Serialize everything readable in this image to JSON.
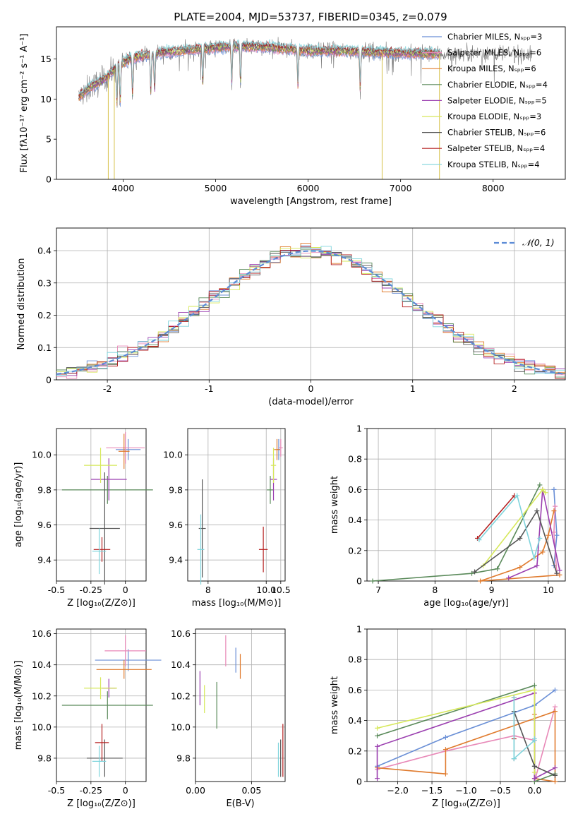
{
  "figure": {
    "title": "PLATE=2004, MJD=53737, FIBERID=0345, z=0.079"
  },
  "chart_data": [
    {
      "id": "spectrum",
      "type": "line",
      "title": "PLATE=2004, MJD=53737, FIBERID=0345, z=0.079",
      "xlabel": "wavelength [Angstrom, rest frame]",
      "ylabel": "Flux [fλ10⁻¹⁷ erg cm⁻² s⁻¹ A⁻¹]",
      "xlim": [
        3280,
        8780
      ],
      "ylim": [
        0,
        19
      ],
      "xticks": [
        4000,
        5000,
        6000,
        7000,
        8000
      ],
      "yticks": [
        0,
        5,
        10,
        15
      ],
      "grid": false,
      "legend_position": "top-right",
      "series": [
        {
          "name": "Chabrier MILES, Nₛₚₚ=3",
          "color": "#6a8fd6"
        },
        {
          "name": "Salpeter MILES, Nₛₚₚ=6",
          "color": "#e889b8"
        },
        {
          "name": "Kroupa MILES, Nₛₚₚ=6",
          "color": "#e07b2e"
        },
        {
          "name": "Chabrier ELODIE, Nₛₚₚ=4",
          "color": "#5a8a5a"
        },
        {
          "name": "Salpeter ELODIE, Nₛₚₚ=5",
          "color": "#9b3fb0"
        },
        {
          "name": "Kroupa ELODIE, Nₛₚₚ=3",
          "color": "#d6e85a"
        },
        {
          "name": "Chabrier STELIB, Nₛₚₚ=6",
          "color": "#555555"
        },
        {
          "name": "Salpeter STELIB, Nₛₚₚ=4",
          "color": "#b52020"
        },
        {
          "name": "Kroupa STELIB, Nₛₚₚ=4",
          "color": "#7fd4dc"
        }
      ],
      "continuum_points": [
        [
          3500,
          10
        ],
        [
          3650,
          11.5
        ],
        [
          3800,
          12.5
        ],
        [
          3950,
          14.2
        ],
        [
          4100,
          15.2
        ],
        [
          4400,
          15.8
        ],
        [
          4800,
          16.2
        ],
        [
          5200,
          16.6
        ],
        [
          5600,
          16.4
        ],
        [
          6000,
          16.0
        ],
        [
          6400,
          16.0
        ],
        [
          6800,
          15.8
        ],
        [
          7200,
          15.7
        ],
        [
          7500,
          15.6
        ],
        [
          8000,
          15.8
        ],
        [
          8400,
          15.5
        ]
      ],
      "spectrum_range": [
        3520,
        8420
      ],
      "model_range": [
        3520,
        7420
      ],
      "absorption_lines": [
        3934,
        3969,
        4102,
        4300,
        4341,
        4861,
        5175,
        5270,
        5890,
        6563
      ],
      "vertical_drops": [
        [
          3840,
          0
        ],
        [
          3905,
          0
        ],
        [
          6800,
          0
        ],
        [
          7420,
          0
        ]
      ]
    },
    {
      "id": "residuals",
      "type": "step",
      "xlabel": "(data-model)/error",
      "ylabel": "Normed distribution",
      "xlim": [
        -2.5,
        2.5
      ],
      "ylim": [
        0,
        0.47
      ],
      "xticks": [
        -2,
        -1,
        0,
        1,
        2
      ],
      "yticks": [
        0.0,
        0.1,
        0.2,
        0.3,
        0.4
      ],
      "grid": true,
      "legend_position": "top-right",
      "reference_curve": {
        "name": "𝒩(0, 1)",
        "color": "#5b8bd6",
        "dashed": true
      },
      "bin_width": 0.1
    },
    {
      "id": "age-vs-Z",
      "type": "errorbar",
      "xlabel": "Z [log₁₀(Z/Z⊙)]",
      "ylabel": "age  [log₁₀(age/yr)]",
      "xlim": [
        -0.5,
        0.15
      ],
      "ylim": [
        9.28,
        10.15
      ],
      "xticks": [
        -0.5,
        -0.25,
        0.0
      ],
      "ytick_labels": [
        "9.4",
        "9.6",
        "9.8",
        "10.0"
      ],
      "yticks": [
        9.4,
        9.6,
        9.8,
        10.0
      ],
      "grid": true,
      "points": [
        {
          "x": 0.02,
          "y": 10.03,
          "xerr": 0.09,
          "yerr": 0.06,
          "color": "#6a8fd6"
        },
        {
          "x": 0.0,
          "y": 10.04,
          "xerr": 0.14,
          "yerr": 0.09,
          "color": "#e889b8"
        },
        {
          "x": -0.01,
          "y": 10.02,
          "xerr": 0.04,
          "yerr": 0.1,
          "color": "#e07b2e"
        },
        {
          "x": -0.13,
          "y": 9.8,
          "xerr": 0.33,
          "yerr": 0.08,
          "color": "#5a8a5a"
        },
        {
          "x": -0.12,
          "y": 9.86,
          "xerr": 0.13,
          "yerr": 0.12,
          "color": "#9b3fb0"
        },
        {
          "x": -0.18,
          "y": 9.94,
          "xerr": 0.12,
          "yerr": 0.1,
          "color": "#d6e85a"
        },
        {
          "x": -0.15,
          "y": 9.58,
          "xerr": 0.11,
          "yerr": 0.32,
          "color": "#555555"
        },
        {
          "x": -0.17,
          "y": 9.46,
          "xerr": 0.06,
          "yerr": 0.07,
          "color": "#b52020"
        },
        {
          "x": -0.19,
          "y": 9.45,
          "xerr": 0.05,
          "yerr": 0.13,
          "color": "#7fd4dc"
        }
      ]
    },
    {
      "id": "age-vs-mass",
      "type": "errorbar",
      "xlabel": "mass [log₁₀(M/M⊙)]",
      "xlim": [
        7.3,
        10.65
      ],
      "ylim": [
        9.28,
        10.15
      ],
      "xticks": [
        8,
        10,
        10.5
      ],
      "xtick_labels": [
        "8",
        "10.0",
        "10.5"
      ],
      "yticks": [
        9.4,
        9.6,
        9.8,
        10.0
      ],
      "ytick_labels": [
        "9.4",
        "9.6",
        "9.8",
        "10.0"
      ],
      "grid": true,
      "points": [
        {
          "x": 10.43,
          "y": 10.03,
          "xerr": 0.05,
          "yerr": 0.06,
          "color": "#6a8fd6"
        },
        {
          "x": 10.5,
          "y": 10.04,
          "xerr": 0.07,
          "yerr": 0.05,
          "color": "#e889b8"
        },
        {
          "x": 10.37,
          "y": 10.03,
          "xerr": 0.1,
          "yerr": 0.06,
          "color": "#e07b2e"
        },
        {
          "x": 10.14,
          "y": 9.8,
          "xerr": 0.12,
          "yerr": 0.08,
          "color": "#5a8a5a"
        },
        {
          "x": 10.25,
          "y": 9.86,
          "xerr": 0.12,
          "yerr": 0.12,
          "color": "#9b3fb0"
        },
        {
          "x": 10.25,
          "y": 9.94,
          "xerr": 0.09,
          "yerr": 0.1,
          "color": "#d6e85a"
        },
        {
          "x": 7.8,
          "y": 9.58,
          "xerr": 0.12,
          "yerr": 0.28,
          "color": "#555555"
        },
        {
          "x": 9.9,
          "y": 9.46,
          "xerr": 0.15,
          "yerr": 0.13,
          "color": "#b52020"
        },
        {
          "x": 7.75,
          "y": 9.46,
          "xerr": 0.12,
          "yerr": 0.2,
          "color": "#7fd4dc"
        }
      ]
    },
    {
      "id": "mass-weight-vs-age",
      "type": "line",
      "xlabel": "age  [log₁₀(age/yr)]",
      "ylabel": "mass weight",
      "xlim": [
        6.8,
        10.3
      ],
      "ylim": [
        0,
        1.0
      ],
      "xticks": [
        7,
        8,
        9,
        10
      ],
      "yticks": [
        0.0,
        0.2,
        0.4,
        0.6,
        0.8,
        1.0
      ],
      "grid": true,
      "series": [
        {
          "color": "#6a8fd6",
          "x": [
            10.1,
            10.15,
            10.1
          ],
          "y": [
            0.6,
            0.3,
            0.1
          ]
        },
        {
          "color": "#e889b8",
          "x": [
            10.12,
            10.1,
            10.15
          ],
          "y": [
            0.49,
            0.32,
            0.05
          ]
        },
        {
          "color": "#e07b2e",
          "x": [
            10.1,
            10.0,
            9.9,
            9.5,
            8.8,
            10.2
          ],
          "y": [
            0.46,
            0.3,
            0.19,
            0.09,
            0.0,
            0.04
          ]
        },
        {
          "color": "#5a8a5a",
          "x": [
            6.9,
            8.65,
            9.1,
            9.85
          ],
          "y": [
            0.0,
            0.05,
            0.08,
            0.63
          ]
        },
        {
          "color": "#9b3fb0",
          "x": [
            9.3,
            9.8,
            9.9,
            10.2
          ],
          "y": [
            0.02,
            0.1,
            0.6,
            0.07
          ]
        },
        {
          "color": "#d6e85a",
          "x": [
            8.85,
            9.9,
            9.95
          ],
          "y": [
            0.1,
            0.6,
            0.58
          ]
        },
        {
          "color": "#555555",
          "x": [
            8.7,
            9.5,
            9.8,
            10.15
          ],
          "y": [
            0.06,
            0.28,
            0.46,
            0.05
          ]
        },
        {
          "color": "#b52020",
          "x": [
            8.75,
            9.4
          ],
          "y": [
            0.28,
            0.56
          ]
        },
        {
          "color": "#7fd4dc",
          "x": [
            8.78,
            9.45,
            9.75,
            9.85
          ],
          "y": [
            0.27,
            0.56,
            0.15,
            0.28
          ]
        }
      ]
    },
    {
      "id": "mass-vs-Z",
      "type": "errorbar",
      "xlabel": "Z [log₁₀(Z/Z⊙)]",
      "ylabel": "mass [log₁₀(M/M⊙)]",
      "xlim": [
        -0.5,
        0.15
      ],
      "ylim": [
        9.65,
        10.63
      ],
      "xticks": [
        -0.5,
        -0.25,
        0.0
      ],
      "yticks": [
        9.8,
        10.0,
        10.2,
        10.4,
        10.6
      ],
      "ytick_labels": [
        "9.8",
        "10.0",
        "10.2",
        "10.4",
        "10.6"
      ],
      "grid": true,
      "points": [
        {
          "x": 0.02,
          "y": 10.43,
          "xerr": 0.24,
          "yerr": 0.07,
          "color": "#6a8fd6"
        },
        {
          "x": 0.0,
          "y": 10.49,
          "xerr": 0.15,
          "yerr": 0.1,
          "color": "#e889b8"
        },
        {
          "x": -0.01,
          "y": 10.37,
          "xerr": 0.2,
          "yerr": 0.06,
          "color": "#e07b2e"
        },
        {
          "x": -0.13,
          "y": 10.14,
          "xerr": 0.33,
          "yerr": 0.09,
          "color": "#5a8a5a"
        },
        {
          "x": -0.12,
          "y": 10.25,
          "xerr": 0.05,
          "yerr": 0.06,
          "color": "#9b3fb0"
        },
        {
          "x": -0.18,
          "y": 10.25,
          "xerr": 0.12,
          "yerr": 0.07,
          "color": "#d6e85a"
        },
        {
          "x": -0.15,
          "y": 9.8,
          "xerr": 0.13,
          "yerr": 0.12,
          "color": "#555555"
        },
        {
          "x": -0.17,
          "y": 9.9,
          "xerr": 0.05,
          "yerr": 0.12,
          "color": "#b52020"
        },
        {
          "x": -0.19,
          "y": 9.78,
          "xerr": 0.05,
          "yerr": 0.1,
          "color": "#7fd4dc"
        }
      ]
    },
    {
      "id": "mass-vs-EBV",
      "type": "errorbar",
      "xlabel": "E(B-V)",
      "xlim": [
        0.0,
        0.08
      ],
      "ylim": [
        9.65,
        10.63
      ],
      "xticks": [
        0.0,
        0.05
      ],
      "xtick_labels": [
        "0.00",
        "0.05"
      ],
      "yticks": [
        9.8,
        10.0,
        10.2,
        10.4,
        10.6
      ],
      "ytick_labels": [
        "9.8",
        "10.0",
        "10.2",
        "10.4",
        "10.6"
      ],
      "grid": true,
      "points": [
        {
          "x": 0.036,
          "y": 10.43,
          "yerr": 0.08,
          "color": "#6a8fd6"
        },
        {
          "x": 0.027,
          "y": 10.49,
          "yerr": 0.1,
          "color": "#e889b8"
        },
        {
          "x": 0.04,
          "y": 10.39,
          "yerr": 0.08,
          "color": "#e07b2e"
        },
        {
          "x": 0.019,
          "y": 10.14,
          "yerr": 0.15,
          "color": "#5a8a5a"
        },
        {
          "x": 0.004,
          "y": 10.25,
          "yerr": 0.11,
          "color": "#9b3fb0"
        },
        {
          "x": 0.008,
          "y": 10.18,
          "yerr": 0.09,
          "color": "#d6e85a"
        },
        {
          "x": 0.076,
          "y": 9.8,
          "yerr": 0.12,
          "color": "#555555"
        },
        {
          "x": 0.078,
          "y": 9.85,
          "yerr": 0.17,
          "color": "#b52020"
        },
        {
          "x": 0.074,
          "y": 9.79,
          "yerr": 0.11,
          "color": "#7fd4dc"
        }
      ]
    },
    {
      "id": "mass-weight-vs-Z",
      "type": "line",
      "xlabel": "Z [log₁₀(Z/Z⊙)]",
      "ylabel": "mass weight",
      "xlim": [
        -2.45,
        0.45
      ],
      "ylim": [
        0,
        1.0
      ],
      "xticks": [
        -2.0,
        -1.5,
        -1.0,
        -0.5,
        0.0
      ],
      "xtick_labels": [
        "−2.0",
        "−1.5",
        "−1.0",
        "−0.5",
        "0.0"
      ],
      "yticks": [
        0.0,
        0.2,
        0.4,
        0.6,
        0.8,
        1.0
      ],
      "grid": true,
      "series": [
        {
          "color": "#6a8fd6",
          "x": [
            -2.3,
            -1.3,
            0.0,
            0.3
          ],
          "y": [
            0.1,
            0.29,
            0.5,
            0.6
          ]
        },
        {
          "color": "#e889b8",
          "x": [
            -2.3,
            -1.3,
            -0.3,
            0.0,
            0.0,
            0.3
          ],
          "y": [
            0.08,
            0.2,
            0.3,
            0.27,
            0.0,
            0.49
          ]
        },
        {
          "color": "#e07b2e",
          "x": [
            -2.3,
            -1.3,
            -1.3,
            0.3,
            0.3,
            0.0,
            0.0
          ],
          "y": [
            0.09,
            0.05,
            0.21,
            0.46,
            0.0,
            0.02,
            0.44
          ]
        },
        {
          "color": "#5a8a5a",
          "x": [
            -2.3,
            0.0,
            0.0,
            0.3
          ],
          "y": [
            0.3,
            0.63,
            0.0,
            0.05
          ]
        },
        {
          "color": "#9b3fb0",
          "x": [
            -2.3,
            -2.3,
            0.0,
            0.0,
            0.3
          ],
          "y": [
            0.02,
            0.23,
            0.58,
            0.02,
            0.09
          ]
        },
        {
          "color": "#d6e85a",
          "x": [
            -2.3,
            0.0,
            0.0
          ],
          "y": [
            0.35,
            0.6,
            0.06
          ]
        },
        {
          "color": "#555555",
          "x": [
            -0.3,
            -0.3,
            0.0,
            0.0,
            0.3
          ],
          "y": [
            0.15,
            0.46,
            0.1,
            0.1,
            0.04
          ]
        },
        {
          "color": "#b52020",
          "x": [
            -0.3,
            -0.3
          ],
          "y": [
            0.28,
            0.55
          ]
        },
        {
          "color": "#7fd4dc",
          "x": [
            -0.3,
            -0.3,
            0.0,
            0.0
          ],
          "y": [
            0.55,
            0.15,
            0.27,
            0.28
          ]
        }
      ]
    }
  ]
}
